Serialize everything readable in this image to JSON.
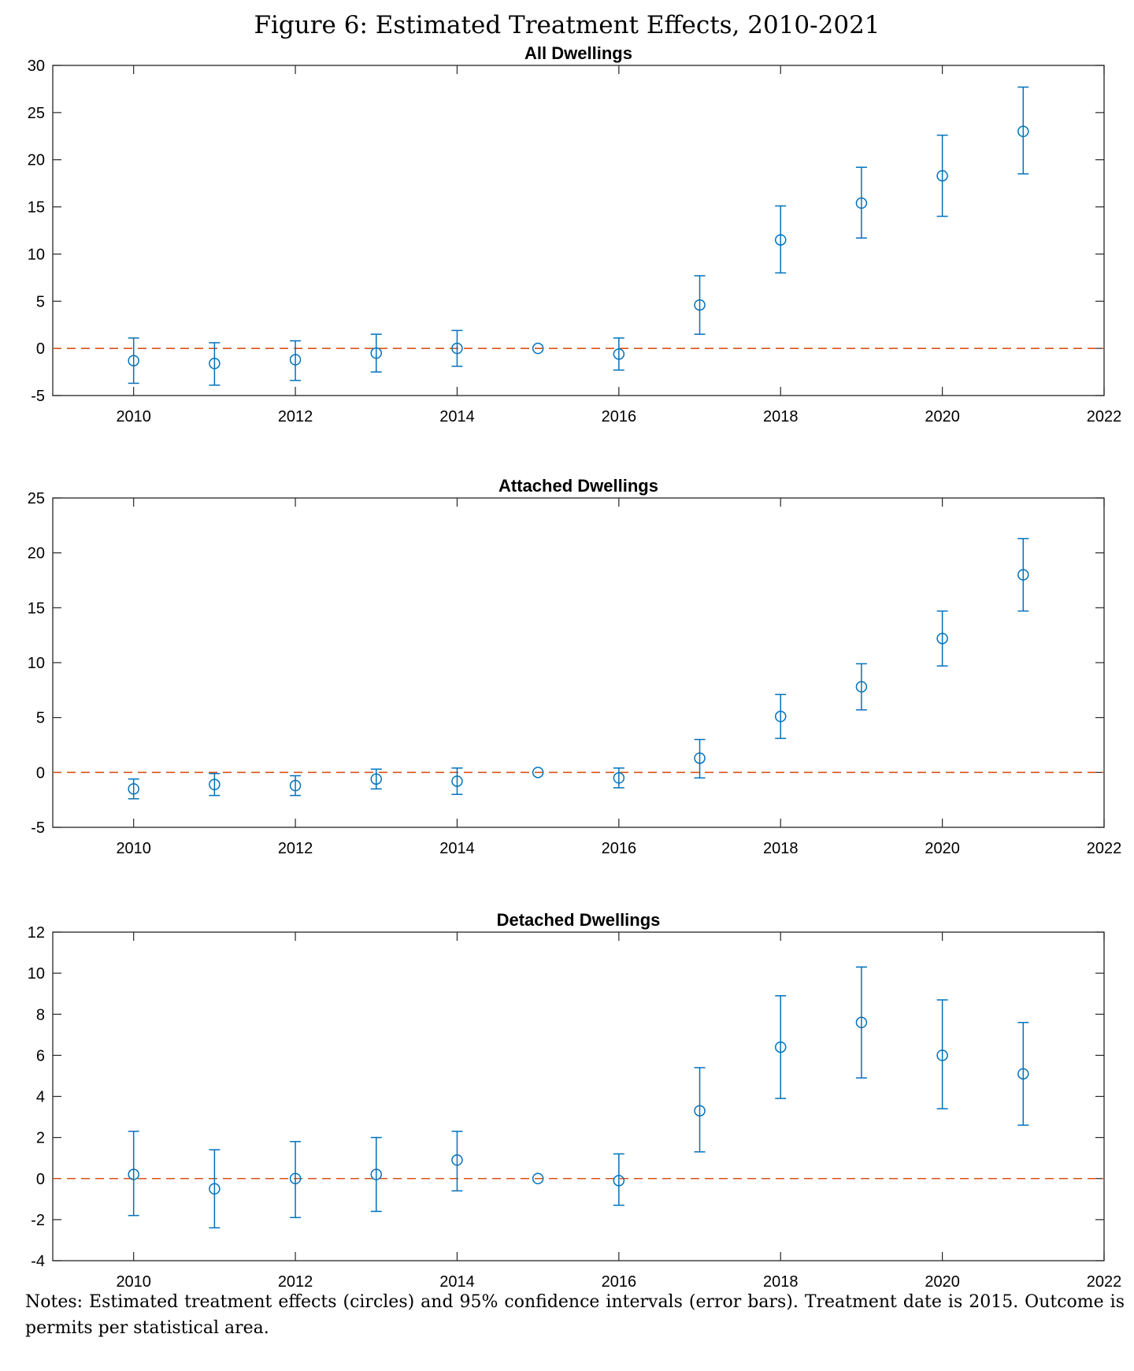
{
  "figure": {
    "title": "Figure 6: Estimated Treatment Effects, 2010-2021",
    "notes": "Notes: Estimated treatment effects (circles) and 95% confidence intervals (error bars). Treatment date is 2015. Outcome is permits per statistical area."
  },
  "colors": {
    "points": "#0072BD",
    "zero_line": "#D95319"
  },
  "chart_data": [
    {
      "type": "scatter",
      "title": "All Dwellings",
      "xlim": [
        2009,
        2022
      ],
      "ylim": [
        -5,
        30
      ],
      "xticks": [
        2010,
        2012,
        2014,
        2016,
        2018,
        2020,
        2022
      ],
      "yticks": [
        -5,
        0,
        5,
        10,
        15,
        20,
        25,
        30
      ],
      "x": [
        2010,
        2011,
        2012,
        2013,
        2014,
        2015,
        2016,
        2017,
        2018,
        2019,
        2020,
        2021
      ],
      "estimate": [
        -1.3,
        -1.6,
        -1.2,
        -0.5,
        0.0,
        0.0,
        -0.6,
        4.6,
        11.5,
        15.4,
        18.3,
        23.0
      ],
      "ci_low": [
        -3.7,
        -3.9,
        -3.4,
        -2.5,
        -1.9,
        0.0,
        -2.3,
        1.5,
        8.0,
        11.7,
        14.0,
        18.5
      ],
      "ci_high": [
        1.1,
        0.6,
        0.8,
        1.5,
        1.9,
        0.0,
        1.1,
        7.7,
        15.1,
        19.2,
        22.6,
        27.7
      ],
      "reference_line": 0,
      "grid": false
    },
    {
      "type": "scatter",
      "title": "Attached Dwellings",
      "xlim": [
        2009,
        2022
      ],
      "ylim": [
        -5,
        25
      ],
      "xticks": [
        2010,
        2012,
        2014,
        2016,
        2018,
        2020,
        2022
      ],
      "yticks": [
        -5,
        0,
        5,
        10,
        15,
        20,
        25
      ],
      "x": [
        2010,
        2011,
        2012,
        2013,
        2014,
        2015,
        2016,
        2017,
        2018,
        2019,
        2020,
        2021
      ],
      "estimate": [
        -1.5,
        -1.1,
        -1.2,
        -0.6,
        -0.8,
        0.0,
        -0.5,
        1.3,
        5.1,
        7.8,
        12.2,
        18.0
      ],
      "ci_low": [
        -2.4,
        -2.1,
        -2.1,
        -1.5,
        -2.0,
        0.0,
        -1.4,
        -0.5,
        3.1,
        5.7,
        9.7,
        14.7
      ],
      "ci_high": [
        -0.6,
        -0.1,
        -0.3,
        0.3,
        0.4,
        0.0,
        0.4,
        3.0,
        7.1,
        9.9,
        14.7,
        21.3
      ],
      "reference_line": 0,
      "grid": false
    },
    {
      "type": "scatter",
      "title": "Detached Dwellings",
      "xlim": [
        2009,
        2022
      ],
      "ylim": [
        -4,
        12
      ],
      "xticks": [
        2010,
        2012,
        2014,
        2016,
        2018,
        2020,
        2022
      ],
      "yticks": [
        -4,
        -2,
        0,
        2,
        4,
        6,
        8,
        10,
        12
      ],
      "x": [
        2010,
        2011,
        2012,
        2013,
        2014,
        2015,
        2016,
        2017,
        2018,
        2019,
        2020,
        2021
      ],
      "estimate": [
        0.2,
        -0.5,
        0.0,
        0.2,
        0.9,
        0.0,
        -0.1,
        3.3,
        6.4,
        7.6,
        6.0,
        5.1
      ],
      "ci_low": [
        -1.8,
        -2.4,
        -1.9,
        -1.6,
        -0.6,
        0.0,
        -1.3,
        1.3,
        3.9,
        4.9,
        3.4,
        2.6
      ],
      "ci_high": [
        2.3,
        1.4,
        1.8,
        2.0,
        2.3,
        0.0,
        1.2,
        5.4,
        8.9,
        10.3,
        8.7,
        7.6
      ],
      "reference_line": 0,
      "grid": false
    }
  ]
}
